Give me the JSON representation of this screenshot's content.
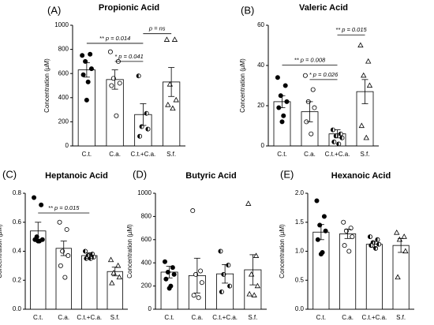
{
  "chart_data": [
    {
      "type": "bar",
      "panel": "(A)",
      "title": "Propionic Acid",
      "ylabel": "Concentration (µM)",
      "categories": [
        "C.t.",
        "C.a.",
        "C.t.+C.a.",
        "S.f."
      ],
      "values": [
        630,
        550,
        260,
        530
      ],
      "errors": [
        60,
        80,
        90,
        120
      ],
      "points": [
        [
          750,
          760,
          700,
          640,
          590,
          530,
          380
        ],
        [
          780,
          700,
          560,
          520,
          500,
          250
        ],
        [
          580,
          270,
          160,
          140,
          80
        ],
        [
          880,
          880,
          510,
          380,
          340,
          310
        ]
      ],
      "markers": [
        "filled-circle",
        "open-circle",
        "half-circle",
        "open-triangle"
      ],
      "bar_color": "#ffffff",
      "edge_color": "#000000",
      "ylim": [
        0,
        1000
      ],
      "yticks": [
        0,
        200,
        400,
        600,
        800,
        1000
      ],
      "annotations": [
        {
          "text": "** p = 0.014",
          "between": [
            "C.t.",
            "C.t.+C.a."
          ]
        },
        {
          "text": "* p = 0.041",
          "between": [
            "C.a.",
            "C.t.+C.a."
          ]
        },
        {
          "text": "p = ns",
          "between": [
            "C.t.+C.a.",
            "S.f."
          ]
        }
      ]
    },
    {
      "type": "bar",
      "panel": "(B)",
      "title": "Valeric Acid",
      "ylabel": "Concentration (µM)",
      "categories": [
        "C.t.",
        "C.a.",
        "C.t.+C.a.",
        "S.f."
      ],
      "values": [
        22,
        17,
        6,
        27
      ],
      "errors": [
        3,
        5,
        2,
        6
      ],
      "points": [
        [
          34,
          30,
          25,
          22,
          19,
          15,
          12
        ],
        [
          35,
          28,
          22,
          19,
          12,
          6
        ],
        [
          8,
          6,
          5,
          4,
          2,
          1
        ],
        [
          50,
          42,
          35,
          30,
          10,
          4
        ]
      ],
      "markers": [
        "filled-circle",
        "open-circle",
        "half-circle",
        "open-triangle"
      ],
      "bar_color": "#ffffff",
      "edge_color": "#000000",
      "ylim": [
        0,
        60
      ],
      "yticks": [
        0,
        20,
        40,
        60
      ],
      "annotations": [
        {
          "text": "** p = 0.008",
          "between": [
            "C.t.",
            "C.t.+C.a."
          ]
        },
        {
          "text": "* p = 0.026",
          "between": [
            "C.a.",
            "C.t.+C.a."
          ]
        },
        {
          "text": "** p = 0.015",
          "between": [
            "C.t.+C.a.",
            "S.f."
          ]
        }
      ]
    },
    {
      "type": "bar",
      "panel": "(C)",
      "title": "Heptanoic Acid",
      "ylabel": "Concentration (µM)",
      "categories": [
        "C.t.",
        "C.a.",
        "C.t.+C.a.",
        "S.f."
      ],
      "values": [
        0.54,
        0.42,
        0.37,
        0.26
      ],
      "errors": [
        0.06,
        0.05,
        0.02,
        0.03
      ],
      "points": [
        [
          0.77,
          0.72,
          0.5,
          0.48,
          0.48,
          0.47,
          0.47
        ],
        [
          0.6,
          0.55,
          0.4,
          0.37,
          0.3,
          0.22
        ],
        [
          0.4,
          0.38,
          0.37,
          0.36,
          0.35,
          0.35
        ],
        [
          0.34,
          0.3,
          0.25,
          0.22,
          0.18
        ]
      ],
      "markers": [
        "filled-circle",
        "open-circle",
        "half-circle",
        "open-triangle"
      ],
      "bar_color": "#ffffff",
      "edge_color": "#000000",
      "ylim": [
        0,
        0.8
      ],
      "yticks": [
        {
          "value": 0,
          "label": "0.0"
        },
        0.2,
        0.4,
        0.6,
        0.8
      ],
      "annotations": [
        {
          "text": "** p = 0.015",
          "between": [
            "C.t.",
            "C.t.+C.a."
          ]
        }
      ]
    },
    {
      "type": "bar",
      "panel": "(D)",
      "title": "Butyric Acid",
      "ylabel": "Concentration (µM)",
      "categories": [
        "C.t.",
        "C.a.",
        "C.t.+C.a.",
        "S.f."
      ],
      "values": [
        320,
        290,
        305,
        340
      ],
      "errors": [
        50,
        150,
        80,
        130
      ],
      "points": [
        [
          410,
          360,
          320,
          300,
          260,
          200,
          180
        ],
        [
          850,
          330,
          300,
          230,
          120,
          100
        ],
        [
          500,
          380,
          300,
          200,
          150
        ],
        [
          910,
          460,
          300,
          200,
          130,
          120
        ]
      ],
      "markers": [
        "filled-circle",
        "open-circle",
        "half-circle",
        "open-triangle"
      ],
      "bar_color": "#ffffff",
      "edge_color": "#000000",
      "ylim": [
        0,
        1000
      ],
      "yticks": [
        0,
        200,
        400,
        600,
        800,
        1000
      ],
      "annotations": []
    },
    {
      "type": "bar",
      "panel": "(E)",
      "title": "Hexanoic Acid",
      "ylabel": "Concentration (µM)",
      "categories": [
        "C.t.",
        "C.a.",
        "C.t.+C.a.",
        "S.f."
      ],
      "values": [
        1.33,
        1.3,
        1.12,
        1.1
      ],
      "errors": [
        0.13,
        0.08,
        0.05,
        0.12
      ],
      "points": [
        [
          1.87,
          1.6,
          1.45,
          1.35,
          1.2,
          0.98,
          0.95
        ],
        [
          1.5,
          1.4,
          1.35,
          1.25,
          1.1,
          1.0
        ],
        [
          1.25,
          1.2,
          1.15,
          1.12,
          1.1,
          1.05
        ],
        [
          1.32,
          1.25,
          1.2,
          1.0,
          0.55
        ]
      ],
      "markers": [
        "filled-circle",
        "open-circle",
        "half-circle",
        "open-triangle"
      ],
      "bar_color": "#ffffff",
      "edge_color": "#000000",
      "ylim": [
        0,
        2.0
      ],
      "yticks": [
        {
          "value": 0,
          "label": "0.0"
        },
        0.5,
        {
          "value": 1,
          "label": "1.0"
        },
        1.5,
        {
          "value": 2,
          "label": "2.0"
        }
      ],
      "annotations": []
    }
  ]
}
